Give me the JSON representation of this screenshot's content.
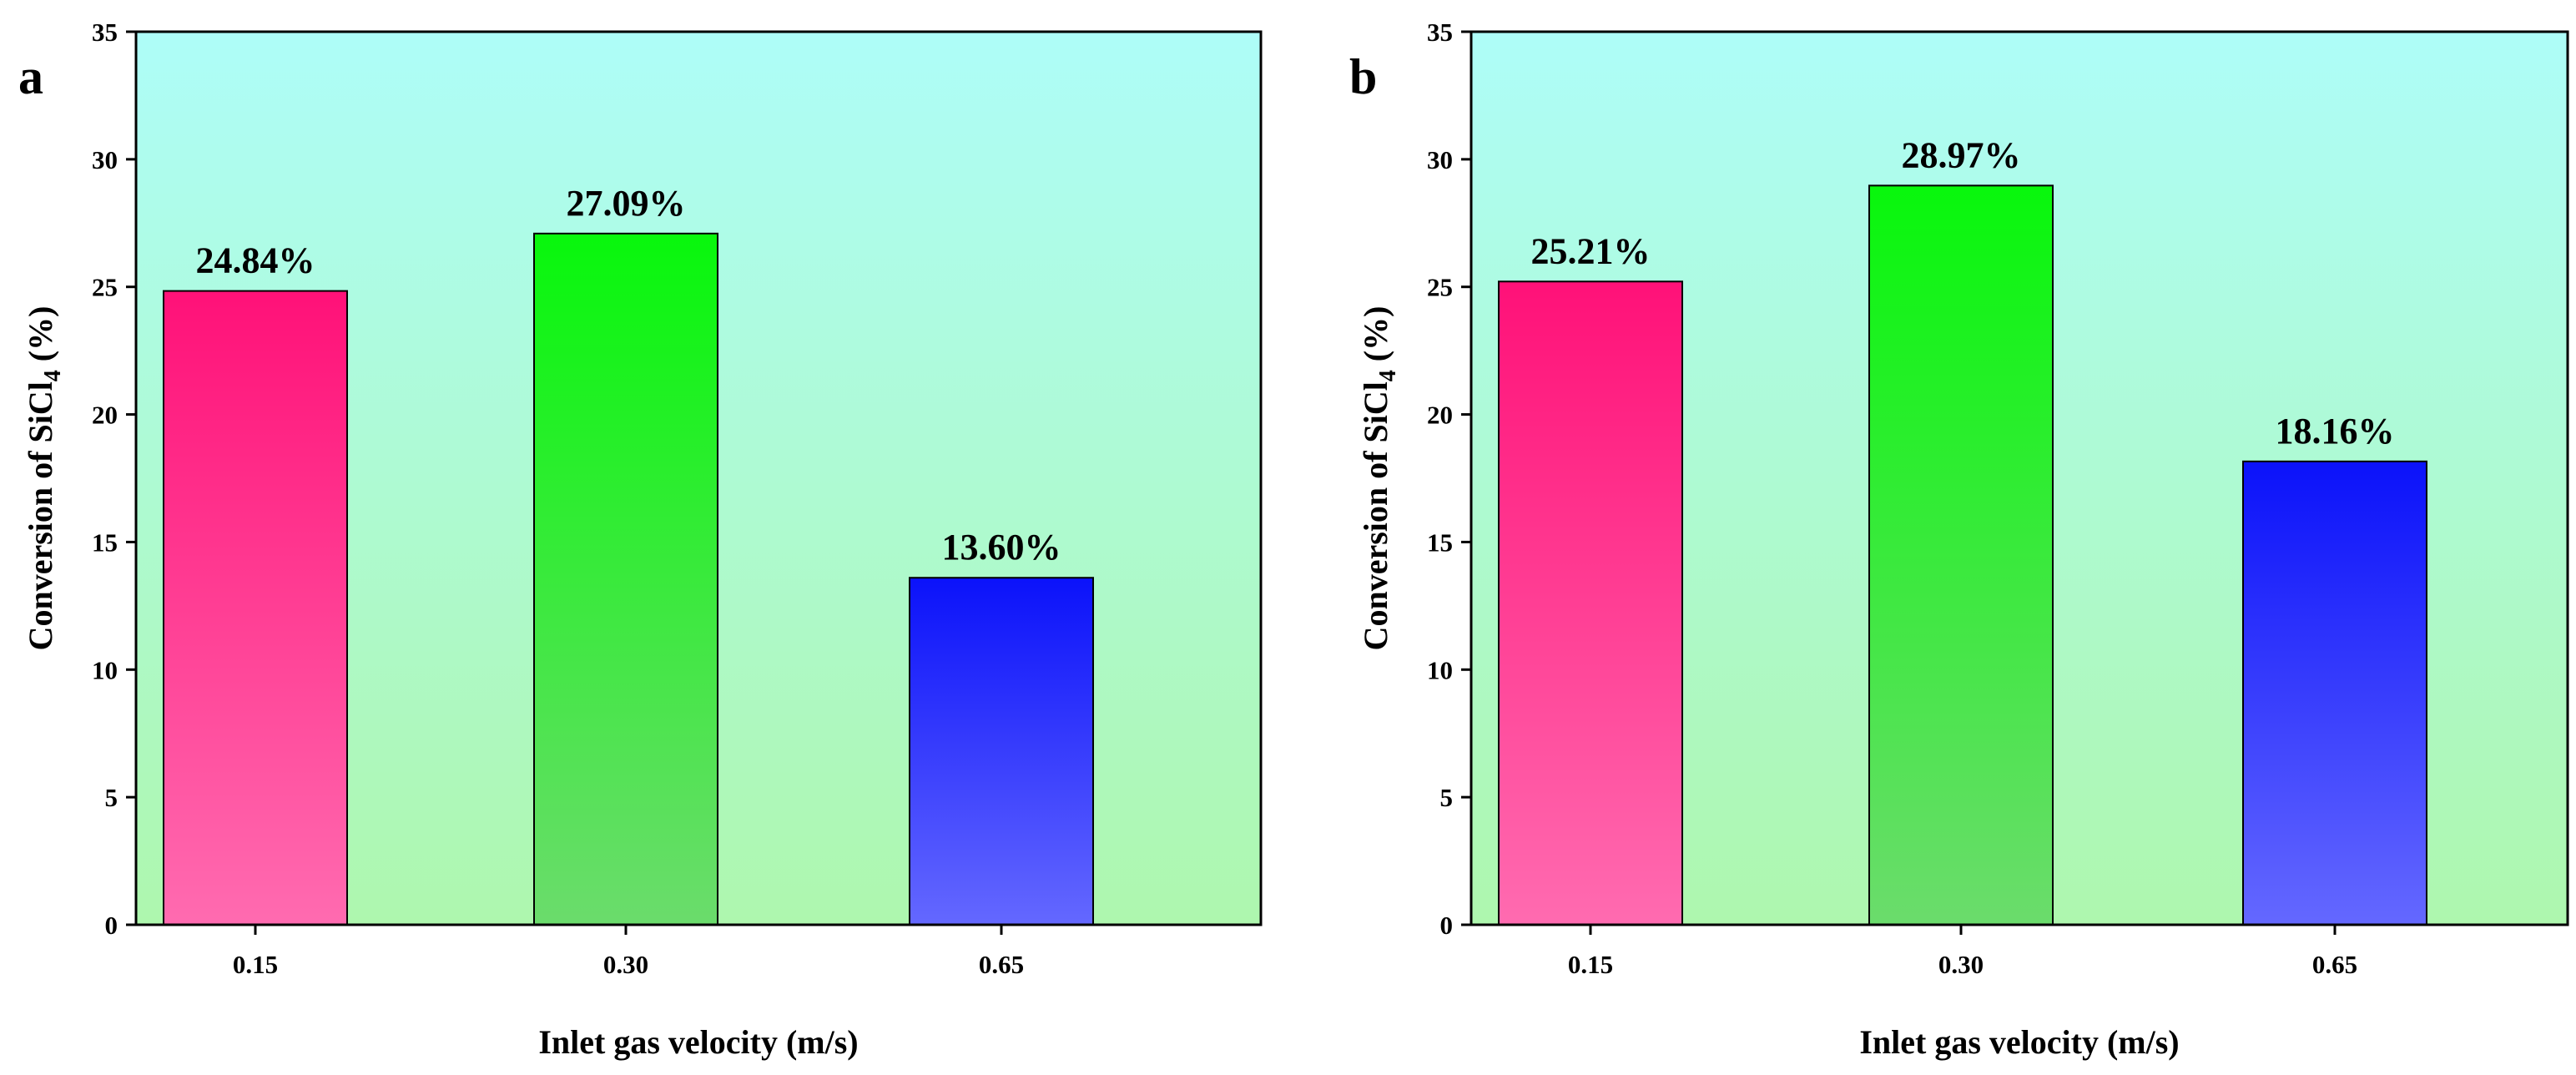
{
  "chart_data": [
    {
      "type": "bar",
      "panel_label": "a",
      "categories": [
        "0.15",
        "0.30",
        "0.65"
      ],
      "values": [
        24.84,
        27.09,
        13.6
      ],
      "data_labels": [
        "24.84%",
        "27.09%",
        "13.60%"
      ],
      "bar_colors": [
        [
          "#ff1178",
          "#ff6bb0"
        ],
        [
          "#08f70c",
          "#6bdc6c"
        ],
        [
          "#0b12fa",
          "#6468ff"
        ]
      ],
      "background_gradient": [
        "#aefdf8",
        "#aef7ae"
      ],
      "xlabel": "Inlet gas velocity (m/s)",
      "ylabel": {
        "prefix": "Conversion of SiCl",
        "subscript": "4",
        "suffix": " (%)"
      },
      "ylim": [
        0,
        35
      ],
      "yticks": [
        0,
        5,
        10,
        15,
        20,
        25,
        30,
        35
      ],
      "grid": false
    },
    {
      "type": "bar",
      "panel_label": "b",
      "categories": [
        "0.15",
        "0.30",
        "0.65"
      ],
      "values": [
        25.21,
        28.97,
        18.16
      ],
      "data_labels": [
        "25.21%",
        "28.97%",
        "18.16%"
      ],
      "bar_colors": [
        [
          "#ff1178",
          "#ff6bb0"
        ],
        [
          "#08f70c",
          "#6bdc6c"
        ],
        [
          "#0b12fa",
          "#6468ff"
        ]
      ],
      "background_gradient": [
        "#aefdf8",
        "#aef7ae"
      ],
      "xlabel": "Inlet gas velocity (m/s)",
      "ylabel": {
        "prefix": "Conversion of SiCl",
        "subscript": "4",
        "suffix": " (%)"
      },
      "ylim": [
        0,
        35
      ],
      "yticks": [
        0,
        5,
        10,
        15,
        20,
        25,
        30,
        35
      ],
      "grid": false
    }
  ]
}
